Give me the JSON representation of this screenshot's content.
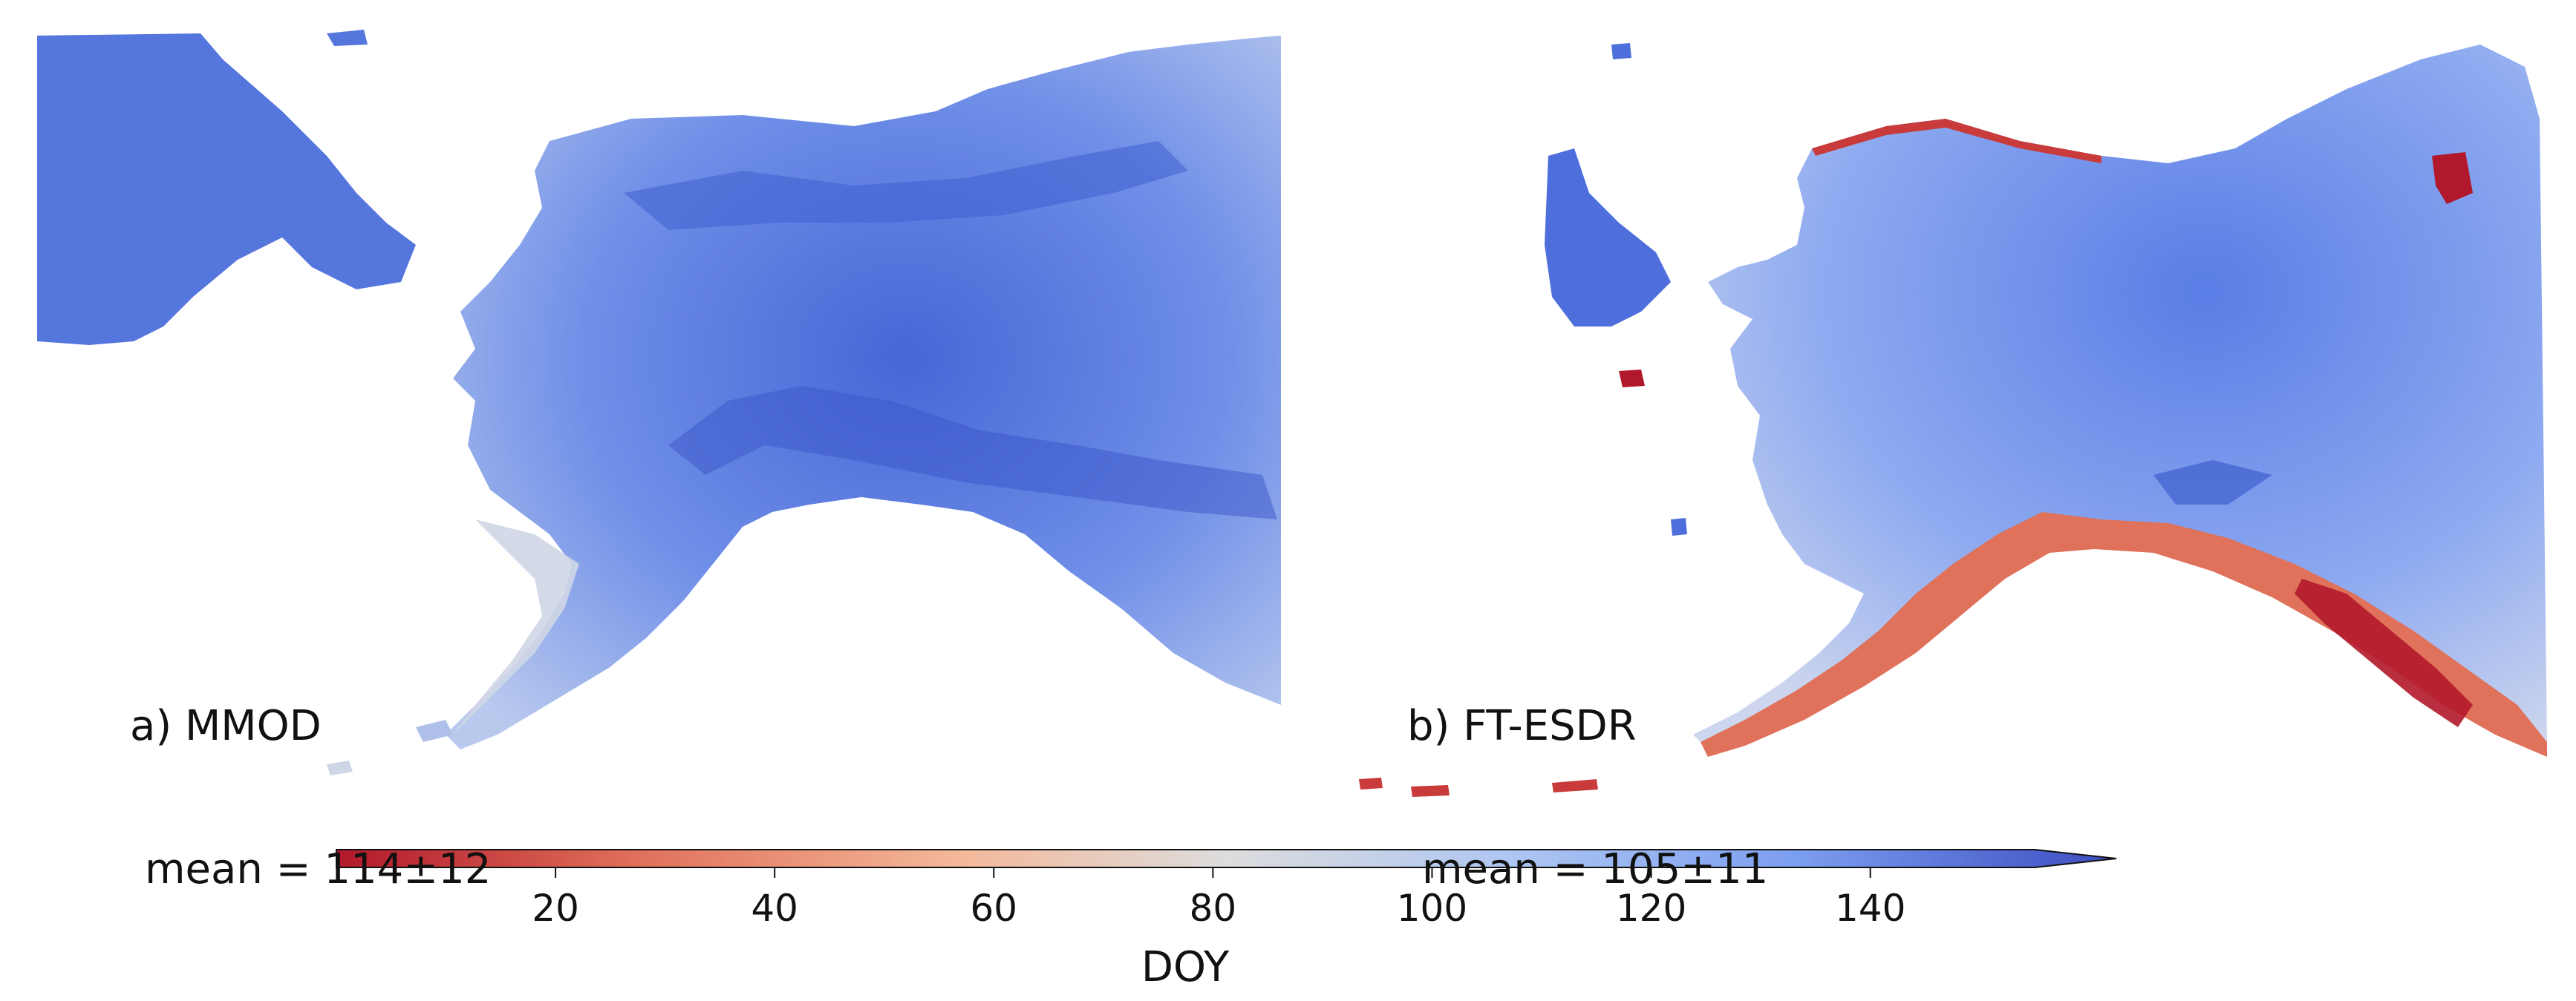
{
  "panels": [
    {
      "id": "a",
      "label": "a) MMOD",
      "stat": "mean = 114±12"
    },
    {
      "id": "b",
      "label": "b) FT-ESDR",
      "stat": "mean = 105±11"
    }
  ],
  "colorbar": {
    "label": "DOY",
    "ticks": [
      20,
      40,
      60,
      80,
      100,
      120,
      140
    ],
    "range": [
      0,
      155
    ],
    "extend": "max",
    "colormap": "coolwarm_r",
    "colors": [
      "#b2182b",
      "#e0715a",
      "#f4b89a",
      "#dddddd",
      "#aec6f2",
      "#7c9ef0",
      "#3b4cc0"
    ]
  }
}
